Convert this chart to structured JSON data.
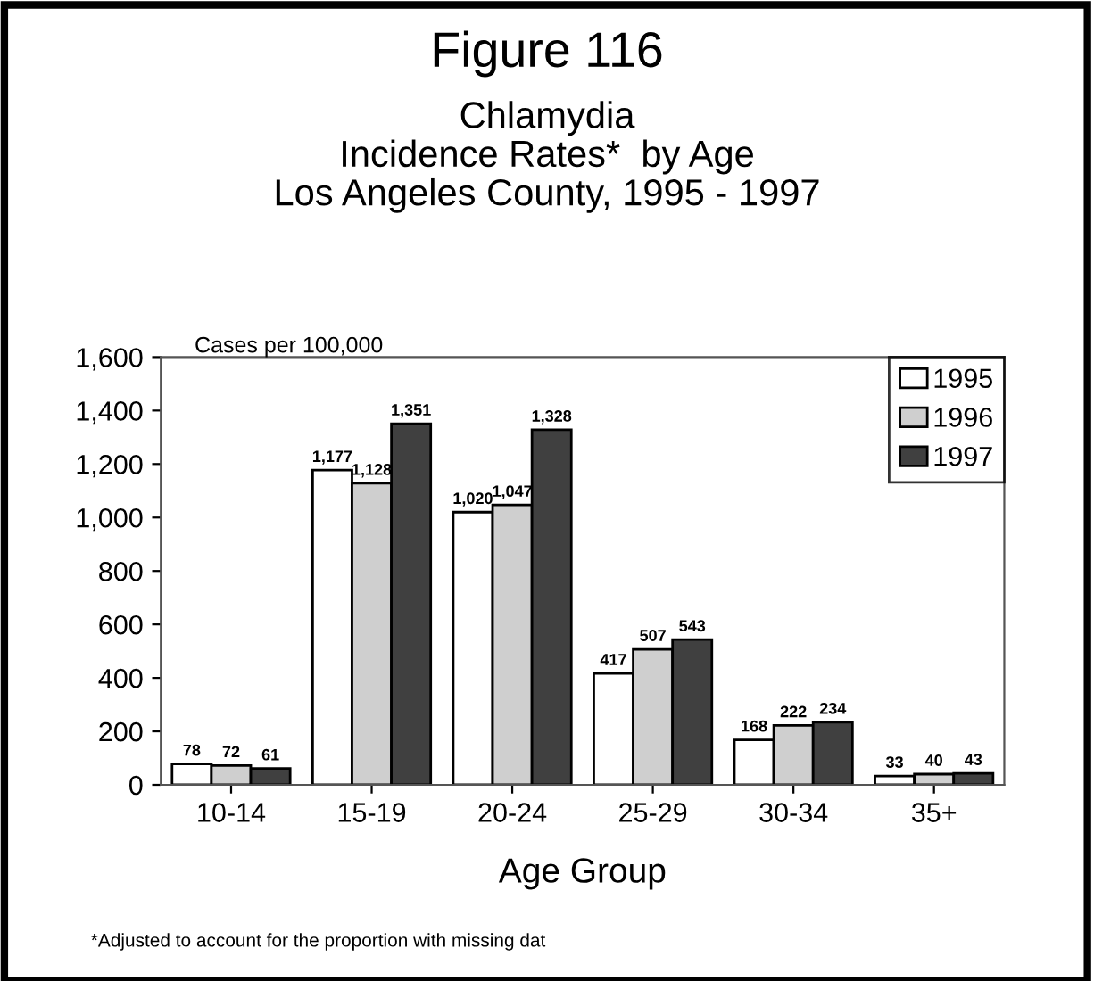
{
  "chart_data": {
    "type": "bar",
    "title": "Figure 116",
    "subtitle": "Chlamydia\nIncidence Rates*  by Age\nLos Angeles County, 1995 - 1997",
    "ylabel": "Cases per 100,000",
    "xlabel": "Age Group",
    "annotations": [
      "*Adjusted to account for the proportion with missing dat"
    ],
    "categories": [
      "10-14",
      "15-19",
      "20-24",
      "25-29",
      "30-34",
      "35+"
    ],
    "series": [
      {
        "name": "1995",
        "color": "#ffffff",
        "values": [
          78,
          1177,
          1020,
          417,
          168,
          33
        ],
        "value_labels": [
          "78",
          "1,177",
          "1,020",
          "417",
          "168",
          "33"
        ]
      },
      {
        "name": "1996",
        "color": "#cfcfcf",
        "values": [
          72,
          1128,
          1047,
          507,
          222,
          40
        ],
        "value_labels": [
          "72",
          "1,128",
          "1,047",
          "507",
          "222",
          "40"
        ]
      },
      {
        "name": "1997",
        "color": "#404040",
        "values": [
          61,
          1351,
          1328,
          543,
          234,
          43
        ],
        "value_labels": [
          "61",
          "1,351",
          "1,328",
          "543",
          "234",
          "43"
        ]
      }
    ],
    "ylim": [
      0,
      1600
    ],
    "yticks": [
      0,
      200,
      400,
      600,
      800,
      {
        "value": 1000,
        "label": "1,000"
      },
      {
        "value": 1200,
        "label": "1,200"
      },
      {
        "value": 1400,
        "label": "1,400"
      },
      {
        "value": 1600,
        "label": "1,600"
      }
    ],
    "grid": false,
    "legend": "top right"
  }
}
